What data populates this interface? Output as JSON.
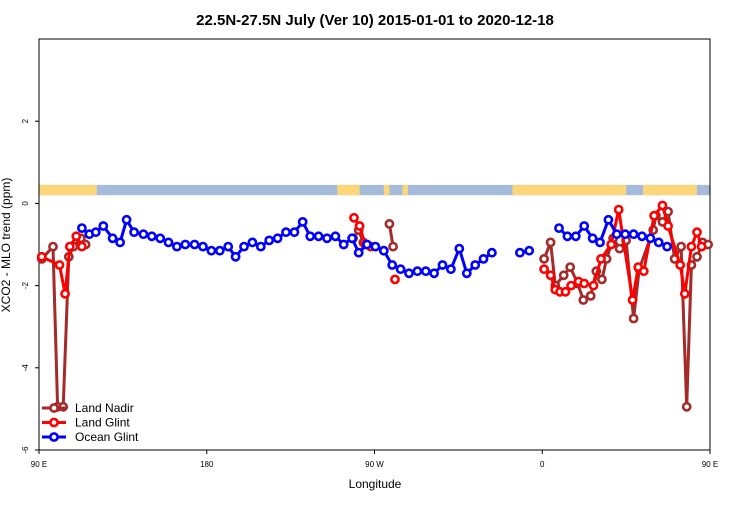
{
  "chart_data": {
    "type": "line",
    "title": "22.5N-27.5N July (Ver 10)   2015-01-01 to 2020-12-18",
    "xlabel": "Longitude",
    "ylabel": "XCO2 - MLO trend (ppm)",
    "xlim": [
      90,
      450
    ],
    "ylim": [
      -6,
      4
    ],
    "x_ticks": [
      {
        "value": 90,
        "label": "90 E"
      },
      {
        "value": 180,
        "label": "180"
      },
      {
        "value": 270,
        "label": "90 W"
      },
      {
        "value": 360,
        "label": "0"
      },
      {
        "value": 450,
        "label": "90 E"
      }
    ],
    "y_ticks": [
      {
        "value": 2,
        "label": "2"
      },
      {
        "value": 0,
        "label": "0"
      },
      {
        "value": -2,
        "label": "-2"
      },
      {
        "value": -4,
        "label": "-4"
      },
      {
        "value": -6,
        "label": "-6"
      }
    ],
    "grid": false,
    "legend_position": "bottom-left",
    "land_ocean_strip": {
      "y_range": [
        0.2,
        0.45
      ],
      "ocean_color": "#a5bbdb",
      "land_color": "#fbd77a",
      "land_segments": [
        [
          90,
          121
        ],
        [
          250,
          262
        ],
        [
          275,
          278
        ],
        [
          285,
          288
        ],
        [
          344,
          405
        ],
        [
          414,
          443
        ]
      ]
    },
    "series": [
      {
        "name": "Land Nadir",
        "color": "#a52a2a",
        "segments": [
          [
            [
              91.5,
              -1.35
            ],
            [
              97.5,
              -1.05
            ],
            [
              100,
              -4.95
            ],
            [
              103,
              -4.95
            ],
            [
              106,
              -1.3
            ],
            [
              108.5,
              -1.05
            ],
            [
              112.5,
              -0.85
            ],
            [
              115,
              -1.0
            ]
          ],
          [
            [
              258.5,
              -0.85
            ],
            [
              261.5,
              -0.65
            ],
            [
              264,
              -0.95
            ]
          ],
          [
            [
              278,
              -0.5
            ],
            [
              280,
              -1.05
            ]
          ],
          [
            [
              361,
              -1.35
            ],
            [
              364.5,
              -0.95
            ],
            [
              367,
              -2.0
            ],
            [
              371.5,
              -1.75
            ],
            [
              375,
              -1.55
            ],
            [
              379,
              -1.95
            ],
            [
              382,
              -2.35
            ],
            [
              386,
              -2.25
            ],
            [
              389,
              -1.65
            ],
            [
              392,
              -1.85
            ],
            [
              394.5,
              -1.35
            ],
            [
              398,
              -0.85
            ],
            [
              401.5,
              -1.1
            ],
            [
              405,
              -0.9
            ],
            [
              409,
              -2.8
            ],
            [
              412,
              -1.6
            ],
            [
              419.5,
              -0.65
            ],
            [
              421,
              -0.3
            ],
            [
              424.5,
              -0.45
            ],
            [
              427.5,
              -0.2
            ],
            [
              431,
              -1.35
            ],
            [
              434.5,
              -1.05
            ],
            [
              437.5,
              -4.95
            ],
            [
              440,
              -1.5
            ],
            [
              443,
              -1.3
            ],
            [
              446,
              -0.95
            ],
            [
              449,
              -1.0
            ]
          ]
        ]
      },
      {
        "name": "Land Glint",
        "color": "#ff0000",
        "segments": [
          [
            [
              91.5,
              -1.3
            ],
            [
              101,
              -1.5
            ],
            [
              104,
              -2.2
            ],
            [
              106.5,
              -1.05
            ],
            [
              110,
              -0.8
            ],
            [
              113,
              -1.05
            ]
          ],
          [
            [
              259,
              -0.35
            ],
            [
              262,
              -0.55
            ],
            [
              265,
              -1.0
            ],
            [
              268,
              -1.05
            ]
          ],
          [
            [
              281,
              -1.85
            ]
          ],
          [
            [
              361,
              -1.6
            ],
            [
              364.5,
              -1.75
            ],
            [
              367,
              -2.1
            ],
            [
              369.5,
              -2.15
            ],
            [
              372.5,
              -2.15
            ],
            [
              375.5,
              -2.0
            ],
            [
              379.5,
              -1.9
            ],
            [
              382.5,
              -1.95
            ],
            [
              387.5,
              -2.0
            ],
            [
              391.5,
              -1.35
            ],
            [
              397,
              -1.0
            ],
            [
              401,
              -0.15
            ],
            [
              408.5,
              -2.35
            ],
            [
              411.5,
              -1.55
            ],
            [
              414.5,
              -1.65
            ],
            [
              420,
              -0.3
            ],
            [
              424.5,
              -0.05
            ],
            [
              427.5,
              -0.55
            ],
            [
              434,
              -1.5
            ],
            [
              436.5,
              -2.2
            ],
            [
              440,
              -1.05
            ],
            [
              443,
              -0.7
            ],
            [
              445.5,
              -1.05
            ]
          ]
        ]
      },
      {
        "name": "Ocean Glint",
        "color": "#0000ff",
        "segments": [
          [
            [
              113,
              -0.6
            ],
            [
              117,
              -0.75
            ],
            [
              120.5,
              -0.7
            ],
            [
              124.5,
              -0.55
            ],
            [
              129.5,
              -0.85
            ],
            [
              133.5,
              -0.95
            ],
            [
              137,
              -0.4
            ],
            [
              141,
              -0.7
            ],
            [
              146,
              -0.75
            ],
            [
              150.5,
              -0.8
            ],
            [
              155,
              -0.85
            ],
            [
              159.5,
              -0.95
            ],
            [
              164,
              -1.05
            ],
            [
              168.5,
              -1.0
            ],
            [
              173.5,
              -1.0
            ],
            [
              178,
              -1.05
            ],
            [
              182.5,
              -1.15
            ],
            [
              187,
              -1.15
            ],
            [
              191.5,
              -1.05
            ],
            [
              195.5,
              -1.3
            ],
            [
              200,
              -1.05
            ],
            [
              204.5,
              -0.95
            ],
            [
              209,
              -1.05
            ],
            [
              213.5,
              -0.9
            ],
            [
              218,
              -0.85
            ],
            [
              222.5,
              -0.7
            ],
            [
              227,
              -0.7
            ],
            [
              231.5,
              -0.45
            ],
            [
              235.5,
              -0.8
            ],
            [
              240,
              -0.8
            ],
            [
              244.5,
              -0.85
            ],
            [
              249,
              -0.8
            ],
            [
              253.5,
              -1.0
            ],
            [
              258,
              -0.85
            ],
            [
              261.5,
              -1.2
            ],
            [
              266,
              -1.0
            ],
            [
              270.5,
              -1.05
            ],
            [
              275,
              -1.15
            ],
            [
              279.5,
              -1.5
            ],
            [
              284,
              -1.6
            ],
            [
              288.5,
              -1.7
            ],
            [
              293,
              -1.65
            ],
            [
              297.5,
              -1.65
            ],
            [
              302,
              -1.7
            ],
            [
              306.5,
              -1.5
            ],
            [
              311,
              -1.6
            ],
            [
              315.5,
              -1.1
            ],
            [
              319.5,
              -1.7
            ],
            [
              324,
              -1.5
            ],
            [
              328.5,
              -1.35
            ],
            [
              333,
              -1.2
            ]
          ],
          [
            [
              348,
              -1.2
            ],
            [
              353,
              -1.15
            ]
          ],
          [
            [
              369,
              -0.6
            ],
            [
              373.5,
              -0.8
            ],
            [
              378,
              -0.8
            ],
            [
              382.5,
              -0.55
            ],
            [
              387,
              -0.85
            ],
            [
              391,
              -0.95
            ],
            [
              395.5,
              -0.4
            ],
            [
              400,
              -0.75
            ],
            [
              404.5,
              -0.75
            ],
            [
              409,
              -0.75
            ],
            [
              413.5,
              -0.8
            ],
            [
              418,
              -0.85
            ],
            [
              422.5,
              -0.95
            ],
            [
              427,
              -1.05
            ]
          ]
        ]
      }
    ]
  }
}
